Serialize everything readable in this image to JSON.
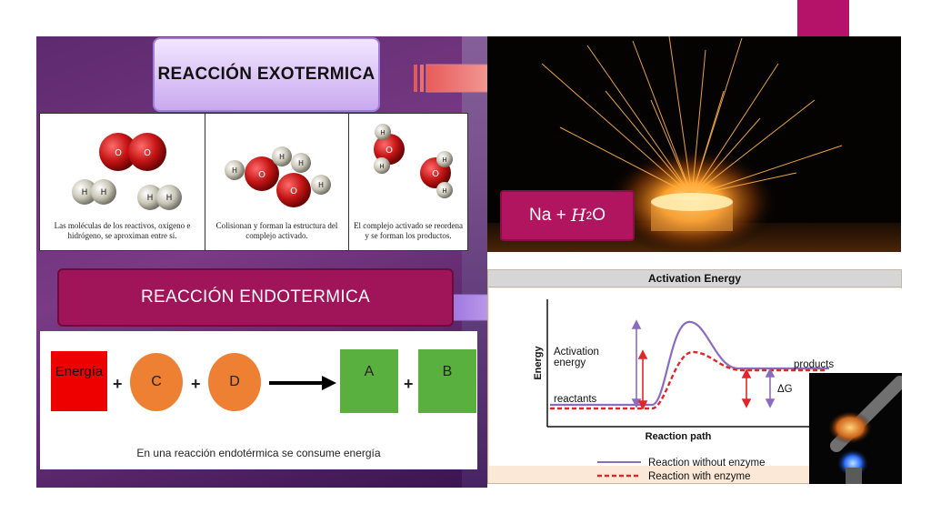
{
  "slide": {
    "title": "REACCIÓN EXOTERMICA",
    "endo_title": "REACCIÓN ENDOTERMICA"
  },
  "molecules": {
    "cells": [
      {
        "caption": "Las moléculas de los reactivos, oxígeno e hidrógeno, se aproximan entre sí."
      },
      {
        "caption": "Colisionan y forman la estructura del complejo activado."
      },
      {
        "caption": "El complejo activado se reordena y se forman los productos."
      }
    ],
    "atom_o": "O",
    "atom_h": "H"
  },
  "formula": {
    "na": "Na",
    "plus": "+",
    "h": "H",
    "sub": "2",
    "o": "O"
  },
  "equation": {
    "energy": "Energía",
    "c": "C",
    "d": "D",
    "a": "A",
    "b": "B",
    "plus": "+",
    "caption": "En una reacción endotérmica se consume energía"
  },
  "chart_data": {
    "type": "line",
    "title": "Activation Energy",
    "xlabel": "Reaction path",
    "ylabel": "Energy",
    "annotations": [
      "Activation energy",
      "reactants",
      "products",
      "ΔG"
    ],
    "series": [
      {
        "name": "Reaction without enzyme",
        "color": "#8a6bbf"
      },
      {
        "name": "Reaction with enzyme",
        "color": "#e0262a"
      }
    ]
  },
  "colors": {
    "accent_magenta": "#b5136a",
    "panel_purple": "#5e2a6e",
    "energy_red": "#ee0000",
    "orange": "#ee8033",
    "green": "#5ab03e"
  }
}
